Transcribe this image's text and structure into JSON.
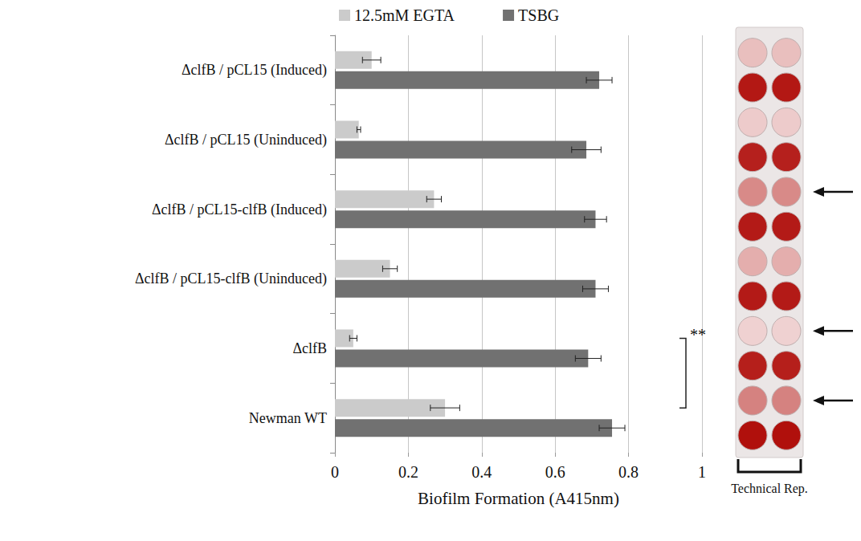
{
  "chart_data": {
    "type": "bar",
    "orientation": "horizontal",
    "categories": [
      "Newman WT",
      "ΔclfB",
      "ΔclfB / pCL15-clfB (Uninduced)",
      "ΔclfB / pCL15-clfB (Induced)",
      "ΔclfB / pCL15 (Uninduced)",
      "ΔclfB / pCL15 (Induced)"
    ],
    "series": [
      {
        "name": "12.5mM EGTA",
        "color": "#cbcbcb",
        "values": [
          0.3,
          0.05,
          0.15,
          0.27,
          0.065,
          0.1
        ],
        "errors": [
          0.04,
          0.01,
          0.02,
          0.02,
          0.005,
          0.025
        ]
      },
      {
        "name": "TSBG",
        "color": "#717171",
        "values": [
          0.755,
          0.69,
          0.71,
          0.71,
          0.685,
          0.72
        ],
        "errors": [
          0.035,
          0.035,
          0.035,
          0.03,
          0.04,
          0.035
        ]
      }
    ],
    "xlabel": "Biofilm Formation (A415nm)",
    "xlim": [
      0,
      1
    ],
    "xticks": [
      0,
      0.2,
      0.4,
      0.6,
      0.8,
      1
    ],
    "grid": true,
    "legend": "top",
    "significance": [
      {
        "label": "**",
        "between": [
          "ΔclfB",
          "Newman WT"
        ]
      }
    ],
    "image_caption": "Technical Rep."
  }
}
